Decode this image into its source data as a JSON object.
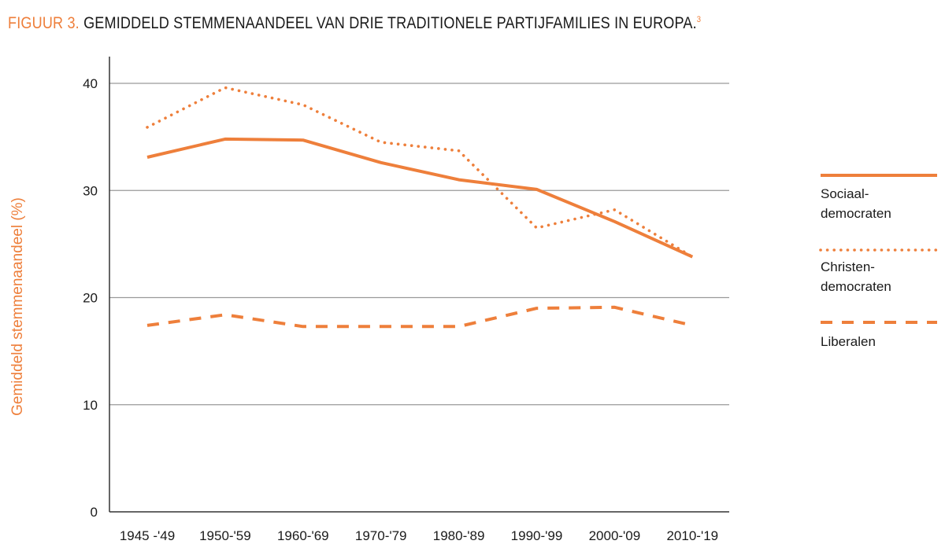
{
  "title": {
    "label": "FIGUUR 3.",
    "text": "GEMIDDELD STEMMENAANDEEL VAN DRIE TRADITIONELE PARTIJFAMILIES IN EUROPA.",
    "footnote": "3"
  },
  "colors": {
    "accent": "#ee7f3b",
    "grid": "#9a9a9a",
    "text": "#1a1a1a"
  },
  "chart_data": {
    "type": "line",
    "ylabel": "Gemiddeld stemmenaandeel (%)",
    "xlabel": "",
    "ylim": [
      0,
      40
    ],
    "yticks": [
      "0",
      "10",
      "20",
      "30",
      "40"
    ],
    "categories": [
      "1945 -'49",
      "1950-'59",
      "1960-'69",
      "1970-'79",
      "1980-'89",
      "1990-'99",
      "2000-'09",
      "2010-'19"
    ],
    "grid": "horizontal",
    "legend_position": "right",
    "series": [
      {
        "name": "Sociaal-democraten",
        "legend_lines": [
          "Sociaal-",
          "democraten"
        ],
        "style": "solid",
        "values": [
          33.1,
          34.8,
          34.7,
          32.6,
          31.0,
          30.1,
          27.1,
          23.8
        ]
      },
      {
        "name": "Christen-democraten",
        "legend_lines": [
          "Christen-",
          "democraten"
        ],
        "style": "dotted",
        "values": [
          35.9,
          39.6,
          38.0,
          34.5,
          33.7,
          26.5,
          28.2,
          23.8
        ]
      },
      {
        "name": "Liberalen",
        "legend_lines": [
          "Liberalen"
        ],
        "style": "dashed",
        "values": [
          17.4,
          18.4,
          17.3,
          17.3,
          17.3,
          19.0,
          19.1,
          17.4
        ]
      }
    ]
  }
}
